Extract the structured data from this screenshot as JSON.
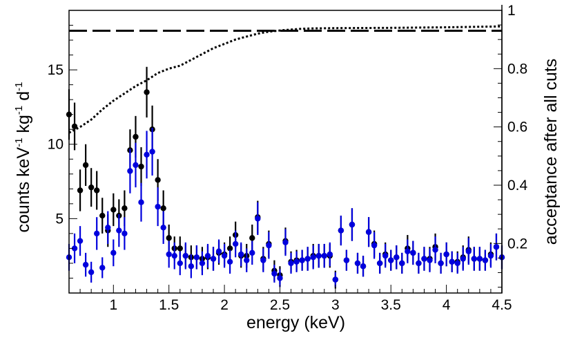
{
  "chart_data": {
    "type": "scatter",
    "title": "",
    "xlabel": "energy (keV)",
    "ylabel": {
      "base": "counts keV",
      "exp1": "-1",
      "mid1": " kg",
      "exp2": "-1",
      "mid2": " d",
      "exp3": "-1"
    },
    "y2label": "acceptance after all cuts",
    "xlim": [
      0.6,
      4.5
    ],
    "ylim": [
      0,
      19
    ],
    "y2lim": [
      0.03,
      1.0
    ],
    "xticks": [
      {
        "value": 1,
        "label": "1"
      },
      {
        "value": 1.5,
        "label": "1.5"
      },
      {
        "value": 2,
        "label": "2"
      },
      {
        "value": 2.5,
        "label": "2.5"
      },
      {
        "value": 3,
        "label": "3"
      },
      {
        "value": 3.5,
        "label": "3.5"
      },
      {
        "value": 4,
        "label": "4"
      },
      {
        "value": 4.5,
        "label": "4.5"
      }
    ],
    "yticks": [
      {
        "value": 5,
        "label": "5"
      },
      {
        "value": 10,
        "label": "10"
      },
      {
        "value": 15,
        "label": "15"
      }
    ],
    "y2ticks": [
      {
        "value": 0.2,
        "label": "0.2"
      },
      {
        "value": 0.4,
        "label": "0.4"
      },
      {
        "value": 0.6,
        "label": "0.6"
      },
      {
        "value": 0.8,
        "label": "0.8"
      },
      {
        "value": 1.0,
        "label": "1"
      }
    ],
    "series": [
      {
        "name": "black",
        "color": "#000000",
        "x": [
          0.6,
          0.65,
          0.7,
          0.75,
          0.8,
          0.85,
          0.9,
          0.95,
          1.0,
          1.05,
          1.1,
          1.15,
          1.2,
          1.25,
          1.3,
          1.35,
          1.4,
          1.45,
          1.5,
          1.55,
          1.6,
          1.65,
          1.7,
          1.75,
          1.8,
          1.85,
          1.9,
          1.95,
          2.0,
          2.05,
          2.1,
          2.15,
          2.2,
          2.25,
          2.3,
          2.35,
          2.4,
          2.45,
          2.5,
          2.55,
          2.6,
          2.65,
          2.7,
          2.75,
          2.8,
          2.85,
          2.9,
          2.95,
          3.0,
          3.05,
          3.1,
          3.15,
          3.2,
          3.25,
          3.3,
          3.35,
          3.4,
          3.45,
          3.5,
          3.55,
          3.6,
          3.65,
          3.7,
          3.75,
          3.8,
          3.85,
          3.9,
          3.95,
          4.0,
          4.05,
          4.1,
          4.15,
          4.2,
          4.25,
          4.3,
          4.35,
          4.4,
          4.45,
          4.5
        ],
        "y": [
          12.0,
          11.2,
          6.9,
          8.6,
          7.1,
          6.9,
          5.2,
          4.2,
          5.6,
          5.2,
          5.7,
          9.6,
          10.5,
          8.5,
          13.5,
          11.0,
          7.6,
          5.7,
          3.7,
          3.0,
          3.0,
          2.5,
          2.4,
          2.4,
          2.3,
          2.4,
          2.3,
          2.7,
          2.6,
          3.0,
          3.9,
          2.5,
          2.5,
          3.7,
          5.1,
          2.3,
          3.3,
          1.5,
          1.2,
          3.5,
          2.1,
          2.2,
          2.2,
          2.3,
          2.5,
          2.5,
          2.5,
          2.5,
          0.9,
          4.2,
          2.2,
          4.6,
          2.0,
          1.8,
          4.1,
          3.3,
          2.0,
          2.6,
          2.2,
          2.4,
          2.0,
          3.0,
          2.7,
          2.0,
          2.3,
          2.3,
          3.1,
          2.0,
          2.6,
          2.1,
          2.1,
          2.4,
          2.9,
          2.3,
          2.3,
          2.2,
          2.6,
          3.1,
          2.4
        ],
        "err": [
          1.7,
          1.6,
          1.4,
          1.4,
          1.3,
          1.3,
          1.2,
          1.1,
          1.1,
          1.1,
          1.2,
          1.4,
          1.4,
          1.3,
          1.7,
          1.6,
          1.4,
          1.2,
          0.9,
          0.8,
          0.8,
          0.8,
          0.8,
          0.8,
          0.8,
          0.8,
          0.8,
          0.8,
          0.8,
          0.8,
          0.9,
          0.8,
          0.8,
          0.9,
          1.1,
          0.8,
          0.9,
          0.7,
          0.6,
          0.9,
          0.7,
          0.7,
          0.7,
          0.8,
          0.8,
          0.8,
          0.8,
          0.8,
          0.6,
          1.0,
          0.7,
          1.1,
          0.7,
          0.7,
          1.0,
          0.9,
          0.7,
          0.8,
          0.7,
          0.8,
          0.7,
          0.9,
          0.8,
          0.7,
          0.8,
          0.8,
          0.9,
          0.7,
          0.8,
          0.7,
          0.7,
          0.8,
          0.9,
          0.8,
          0.8,
          0.7,
          0.8,
          0.9,
          0.8
        ]
      },
      {
        "name": "blue",
        "color": "#0000dd",
        "x": [
          0.6,
          0.65,
          0.7,
          0.75,
          0.8,
          0.85,
          0.9,
          0.95,
          1.0,
          1.05,
          1.1,
          1.15,
          1.2,
          1.25,
          1.3,
          1.35,
          1.4,
          1.45,
          1.5,
          1.55,
          1.6,
          1.65,
          1.7,
          1.75,
          1.8,
          1.85,
          1.9,
          1.95,
          2.0,
          2.05,
          2.1,
          2.15,
          2.2,
          2.25,
          2.3,
          2.35,
          2.4,
          2.45,
          2.5,
          2.55,
          2.6,
          2.65,
          2.7,
          2.75,
          2.8,
          2.85,
          2.9,
          2.95,
          3.0,
          3.05,
          3.1,
          3.15,
          3.2,
          3.25,
          3.3,
          3.35,
          3.4,
          3.45,
          3.5,
          3.55,
          3.6,
          3.65,
          3.7,
          3.75,
          3.8,
          3.85,
          3.9,
          3.95,
          4.0,
          4.05,
          4.1,
          4.15,
          4.2,
          4.25,
          4.3,
          4.35,
          4.4,
          4.45,
          4.5
        ],
        "y": [
          2.4,
          3.0,
          3.5,
          1.9,
          1.4,
          4.0,
          1.7,
          4.4,
          2.7,
          4.2,
          4.0,
          8.2,
          8.6,
          6.1,
          9.3,
          9.5,
          5.8,
          4.4,
          2.6,
          2.5,
          2.0,
          2.5,
          1.8,
          2.4,
          2.0,
          2.5,
          2.3,
          2.8,
          2.5,
          2.1,
          3.3,
          2.6,
          2.2,
          2.7,
          5.0,
          2.2,
          3.2,
          1.3,
          1.0,
          3.4,
          2.0,
          2.1,
          2.2,
          2.3,
          2.4,
          2.5,
          2.5,
          2.6,
          0.9,
          4.2,
          2.2,
          4.6,
          2.0,
          1.8,
          4.1,
          3.2,
          2.0,
          2.5,
          2.2,
          2.4,
          2.0,
          2.8,
          2.7,
          2.0,
          2.3,
          2.2,
          2.9,
          2.0,
          2.6,
          2.1,
          2.0,
          2.3,
          2.8,
          2.3,
          2.3,
          2.2,
          2.5,
          3.1,
          2.4
        ],
        "err": [
          0.9,
          1.0,
          1.0,
          0.8,
          0.7,
          1.1,
          0.7,
          1.1,
          0.9,
          1.1,
          1.1,
          1.5,
          1.5,
          1.3,
          1.6,
          1.6,
          1.3,
          1.1,
          0.9,
          0.9,
          0.8,
          0.9,
          0.8,
          0.8,
          0.8,
          0.8,
          0.8,
          0.8,
          0.8,
          0.8,
          0.9,
          0.8,
          0.8,
          0.8,
          1.1,
          0.8,
          0.9,
          0.6,
          0.6,
          0.9,
          0.7,
          0.7,
          0.7,
          0.8,
          0.8,
          0.8,
          0.8,
          0.8,
          0.5,
          1.0,
          0.7,
          1.1,
          0.7,
          0.7,
          1.0,
          0.9,
          0.7,
          0.8,
          0.7,
          0.8,
          0.7,
          0.8,
          0.8,
          0.7,
          0.8,
          0.8,
          0.9,
          0.7,
          0.8,
          0.7,
          0.7,
          0.8,
          0.9,
          0.8,
          0.8,
          0.7,
          0.8,
          0.9,
          0.8
        ]
      }
    ],
    "acceptance_curves": [
      {
        "name": "dashed",
        "style": "dashed",
        "x": [
          0.6,
          4.5
        ],
        "acceptance": [
          0.93,
          0.93
        ]
      },
      {
        "name": "dotted",
        "style": "dotted",
        "x": [
          0.6,
          0.65,
          0.7,
          0.8,
          0.9,
          1.0,
          1.1,
          1.2,
          1.3,
          1.4,
          1.5,
          1.6,
          1.7,
          1.8,
          1.9,
          2.0,
          2.1,
          2.2,
          2.3,
          2.4,
          2.5,
          2.6,
          2.7,
          2.8,
          3.0,
          3.5,
          4.0,
          4.5
        ],
        "acceptance": [
          0.58,
          0.59,
          0.6,
          0.625,
          0.66,
          0.69,
          0.715,
          0.74,
          0.76,
          0.785,
          0.8,
          0.81,
          0.83,
          0.85,
          0.87,
          0.885,
          0.9,
          0.91,
          0.92,
          0.927,
          0.931,
          0.934,
          0.937,
          0.938,
          0.939,
          0.94,
          0.942,
          0.945
        ]
      }
    ]
  }
}
